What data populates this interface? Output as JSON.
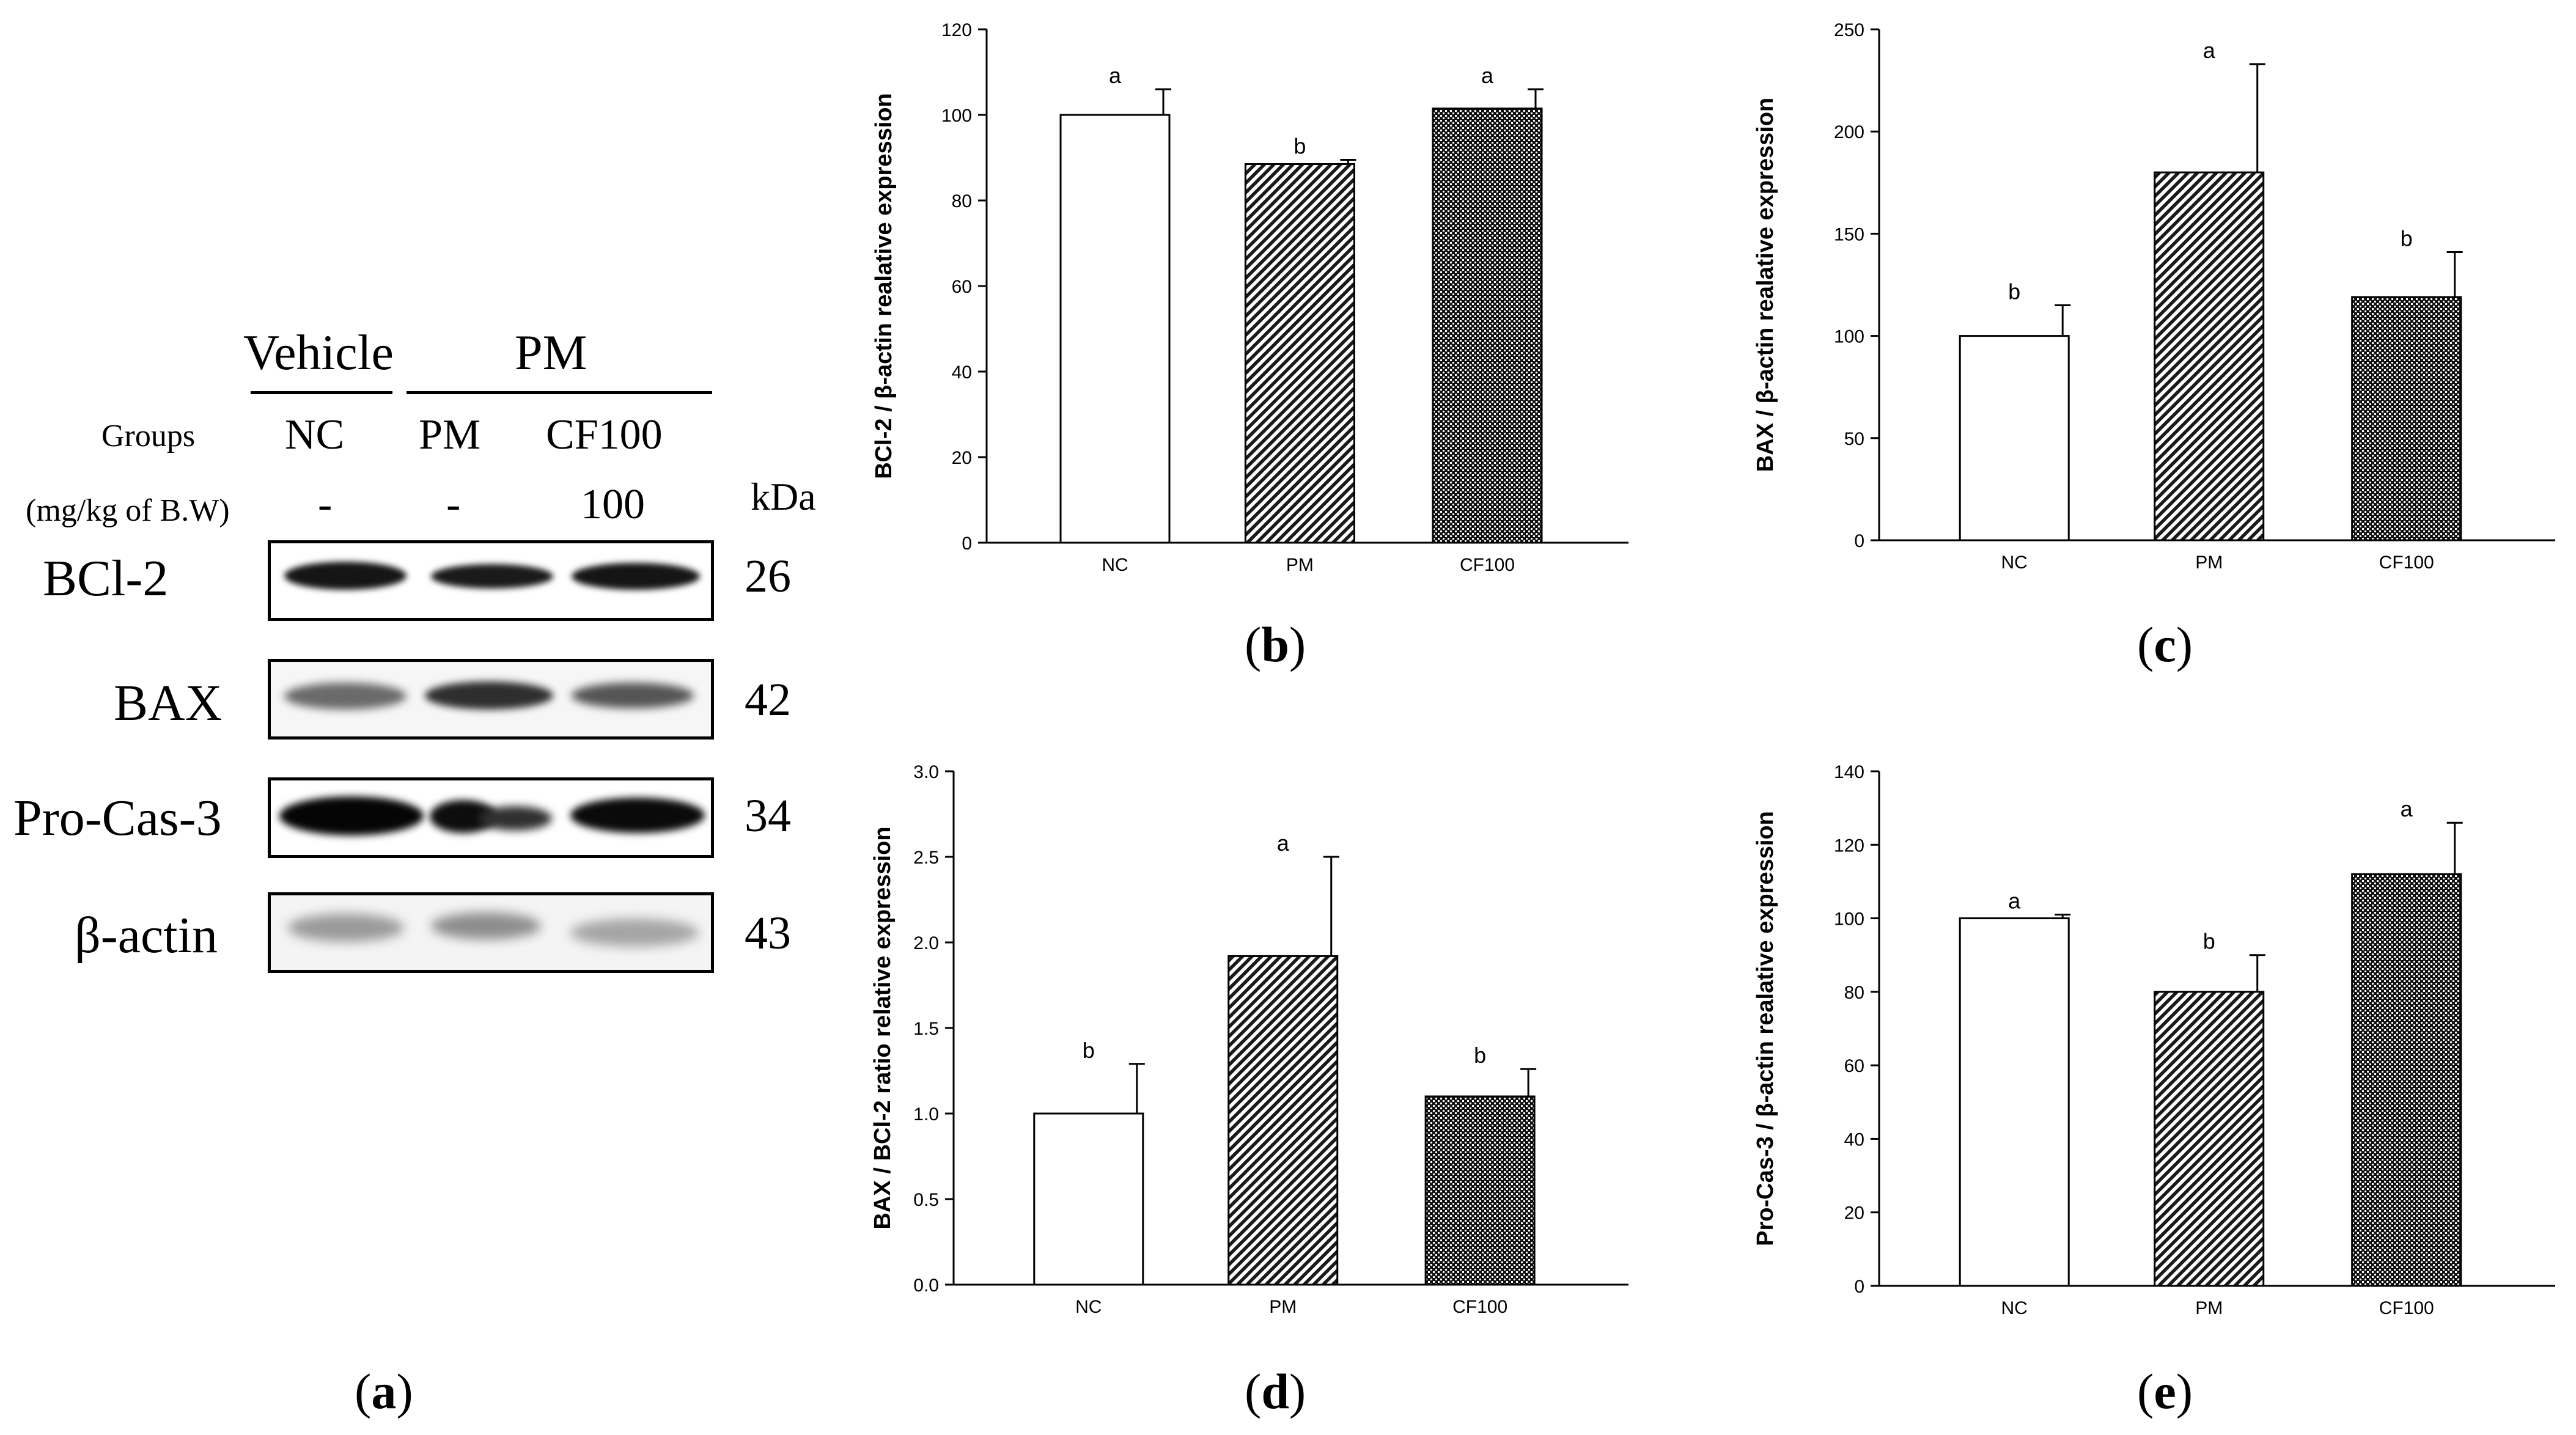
{
  "blot": {
    "vehicle_label": "Vehicle",
    "pm_header_label": "PM",
    "groups_label": "Groups",
    "lanes": [
      "NC",
      "PM",
      "CF100"
    ],
    "dose_label": "(mg/kg of B.W)",
    "doses": [
      "-",
      "-",
      "100"
    ],
    "kda_label": "kDa",
    "proteins": [
      {
        "name": "BCl-2",
        "kda": "26"
      },
      {
        "name": "BAX",
        "kda": "42"
      },
      {
        "name": "Pro-Cas-3",
        "kda": "34"
      },
      {
        "name": "β-actin",
        "kda": "43"
      }
    ]
  },
  "panel_labels": {
    "a": "a",
    "b": "b",
    "c": "c",
    "d": "d",
    "e": "e"
  },
  "chart_data": [
    {
      "id": "b",
      "type": "bar",
      "categories": [
        "NC",
        "PM",
        "CF100"
      ],
      "values": [
        100,
        88.5,
        101.5
      ],
      "errors": [
        6,
        1,
        4.5
      ],
      "letters": [
        "a",
        "b",
        "a"
      ],
      "patterns": [
        "none",
        "diagonal",
        "crosshatch"
      ],
      "ylabel": "BCl-2 / β-actin realative expression",
      "ylim": [
        0,
        120
      ],
      "yticks": [
        "0",
        "20",
        "40",
        "60",
        "80",
        "100",
        "120"
      ]
    },
    {
      "id": "c",
      "type": "bar",
      "categories": [
        "NC",
        "PM",
        "CF100"
      ],
      "values": [
        100,
        180,
        119
      ],
      "errors": [
        15,
        53,
        22
      ],
      "letters": [
        "b",
        "a",
        "b"
      ],
      "patterns": [
        "none",
        "diagonal",
        "crosshatch"
      ],
      "ylabel": "BAX / β-actin realative expression",
      "ylim": [
        0,
        250
      ],
      "yticks": [
        "0",
        "50",
        "100",
        "150",
        "200",
        "250"
      ]
    },
    {
      "id": "d",
      "type": "bar",
      "categories": [
        "NC",
        "PM",
        "CF100"
      ],
      "values": [
        1.0,
        1.92,
        1.1
      ],
      "errors": [
        0.29,
        0.58,
        0.16
      ],
      "letters": [
        "b",
        "a",
        "b"
      ],
      "patterns": [
        "none",
        "diagonal",
        "crosshatch"
      ],
      "ylabel": "BAX / BCl-2 ratio relative expression",
      "ylim": [
        0,
        3.0
      ],
      "yticks": [
        "0.0",
        "0.5",
        "1.0",
        "1.5",
        "2.0",
        "2.5",
        "3.0"
      ]
    },
    {
      "id": "e",
      "type": "bar",
      "categories": [
        "NC",
        "PM",
        "CF100"
      ],
      "values": [
        100,
        80,
        112
      ],
      "errors": [
        1,
        10,
        14
      ],
      "letters": [
        "a",
        "b",
        "a"
      ],
      "patterns": [
        "none",
        "diagonal",
        "crosshatch"
      ],
      "ylabel": "Pro-Cas-3 / β-actin realative expression",
      "ylim": [
        0,
        140
      ],
      "yticks": [
        "0",
        "20",
        "40",
        "60",
        "80",
        "100",
        "120",
        "140"
      ]
    }
  ]
}
